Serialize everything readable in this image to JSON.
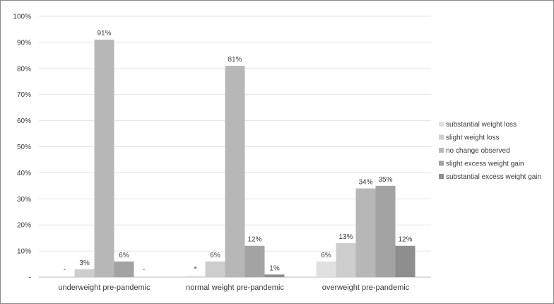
{
  "chart_data": {
    "type": "bar",
    "categories": [
      "underweight pre-pandemic",
      "normal weight pre-pandemic",
      "overweight pre-pandemic"
    ],
    "series": [
      {
        "name": "substantial weight loss",
        "color": "#e0e0e0",
        "values": [
          0,
          0.5,
          6
        ],
        "labels": [
          "-",
          "*",
          "6%"
        ]
      },
      {
        "name": "slight weight loss",
        "color": "#cdcdcd",
        "values": [
          3,
          6,
          13
        ],
        "labels": [
          "3%",
          "6%",
          "13%"
        ]
      },
      {
        "name": "no change observed",
        "color": "#b7b7b7",
        "values": [
          91,
          81,
          34
        ],
        "labels": [
          "91%",
          "81%",
          "34%"
        ]
      },
      {
        "name": "slight excess weight gain",
        "color": "#a3a3a3",
        "values": [
          6,
          12,
          35
        ],
        "labels": [
          "6%",
          "12%",
          "35%"
        ]
      },
      {
        "name": "substantial excess weight gain",
        "color": "#8e8e8e",
        "values": [
          0,
          1,
          12
        ],
        "labels": [
          "-",
          "1%",
          "12%"
        ]
      }
    ],
    "y_ticks": [
      "-",
      "10%",
      "20%",
      "30%",
      "40%",
      "50%",
      "60%",
      "70%",
      "80%",
      "90%",
      "100%"
    ],
    "ylim": [
      0,
      100
    ],
    "grid": true,
    "legend_position": "right"
  }
}
